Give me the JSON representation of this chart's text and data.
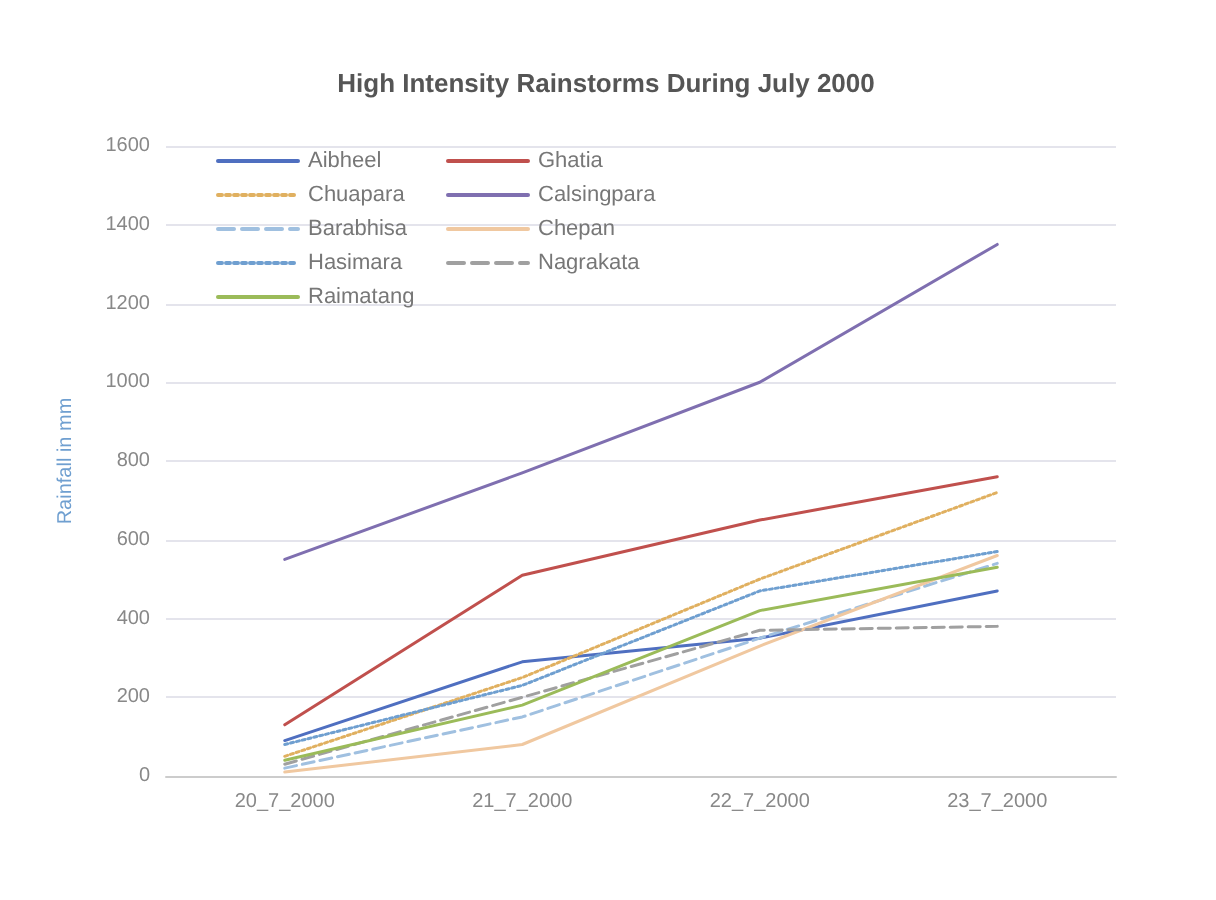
{
  "chart_data": {
    "type": "line",
    "title": "High Intensity Rainstorms During July 2000",
    "ylabel": "Rainfall in mm",
    "categories": [
      "20_7_2000",
      "21_7_2000",
      "22_7_2000",
      "23_7_2000"
    ],
    "ylim": [
      0,
      1600
    ],
    "yticks": [
      0,
      200,
      400,
      600,
      800,
      1000,
      1200,
      1400,
      1600
    ],
    "grid": "y",
    "legend": "top left",
    "marker": "none",
    "series": [
      {
        "name": "Aibheel",
        "color": "#4f6fc0",
        "line_style": "solid",
        "values": [
          90,
          290,
          350,
          470
        ]
      },
      {
        "name": "Ghatia",
        "color": "#c0504d",
        "line_style": "solid",
        "values": [
          130,
          510,
          650,
          760
        ]
      },
      {
        "name": "Chuapara",
        "color": "#e0b060",
        "line_style": "dotted",
        "values": [
          50,
          250,
          500,
          720
        ]
      },
      {
        "name": "Calsingpara",
        "color": "#7f6fb0",
        "line_style": "solid",
        "values": [
          550,
          770,
          1000,
          1350
        ]
      },
      {
        "name": "Barabhisa",
        "color": "#a0c0e0",
        "line_style": "dashed",
        "values": [
          20,
          150,
          350,
          540
        ]
      },
      {
        "name": "Chepan",
        "color": "#f0c8a0",
        "line_style": "solid",
        "values": [
          10,
          80,
          330,
          560
        ]
      },
      {
        "name": "Hasimara",
        "color": "#6f9fd0",
        "line_style": "dotted",
        "values": [
          80,
          230,
          470,
          570
        ]
      },
      {
        "name": "Nagrakata",
        "color": "#a0a0a0",
        "line_style": "dashed",
        "values": [
          30,
          200,
          370,
          380
        ]
      },
      {
        "name": "Raimatang",
        "color": "#9bbb59",
        "line_style": "solid",
        "values": [
          40,
          180,
          420,
          530
        ]
      }
    ]
  }
}
